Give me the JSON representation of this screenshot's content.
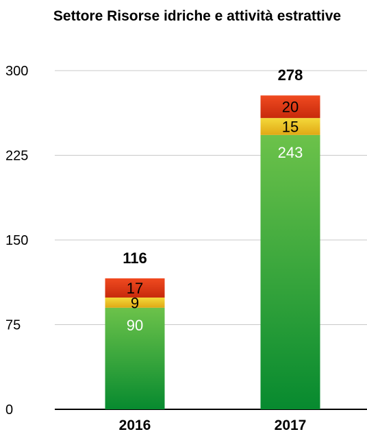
{
  "chart_data": {
    "type": "bar",
    "stacked": true,
    "title": "Settore Risorse idriche e attività estrattive",
    "xlabel": "",
    "ylabel": "",
    "ylim": [
      0,
      300
    ],
    "yticks": [
      0,
      75,
      150,
      225,
      300
    ],
    "grid": true,
    "legend": "none",
    "categories": [
      "2016",
      "2017"
    ],
    "series": [
      {
        "values": [
          90,
          243
        ],
        "color": "#4cb23c"
      },
      {
        "values": [
          9,
          15
        ],
        "color": "#f2c72a"
      },
      {
        "values": [
          17,
          20
        ],
        "color": "#e23a14"
      }
    ],
    "totals": [
      116,
      278
    ]
  }
}
